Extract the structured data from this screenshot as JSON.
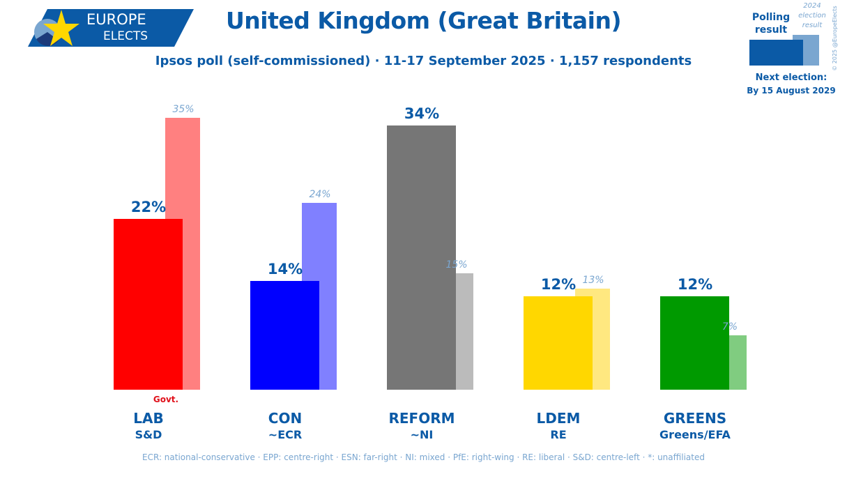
{
  "header": {
    "title": "United Kingdom (Great Britain)",
    "subtitle": "Ipsos poll (self-commissioned) · 11-17 September 2025 · 1,157 respondents"
  },
  "logo": {
    "line1": "EUROPE",
    "line2": "ELECTS"
  },
  "legend": {
    "polling": "Polling result",
    "previous_line1": "2024",
    "previous_line2": "election",
    "previous_line3": "result",
    "copyright": "© 2025 @EuropeElects",
    "next_election_label": "Next election:",
    "next_election_date": "By 15 August 2029",
    "polling_color": "#0b5aa6",
    "previous_color": "#7aa6d0"
  },
  "chart_data": {
    "type": "bar",
    "categories": [
      "LAB",
      "CON",
      "REFORM",
      "LDEM",
      "GREENS"
    ],
    "groups": [
      "S&D",
      "~ECR",
      "~NI",
      "RE",
      "Greens/EFA"
    ],
    "series": [
      {
        "name": "Polling result",
        "values": [
          22,
          14,
          34,
          12,
          12
        ],
        "labels": [
          "22%",
          "14%",
          "34%",
          "12%",
          "12%"
        ]
      },
      {
        "name": "2024 election result",
        "values": [
          35,
          24,
          15,
          13,
          7
        ],
        "labels": [
          "35%",
          "24%",
          "15%",
          "13%",
          "7%"
        ]
      }
    ],
    "colors": [
      "#ff0000",
      "#0000ff",
      "#767676",
      "#ffd700",
      "#009a00"
    ],
    "prev_colors": [
      "#ff8080",
      "#8080ff",
      "#bbbbbb",
      "#ffe880",
      "#80cc80"
    ],
    "annotation": {
      "party": "LAB",
      "text": "Govt.",
      "color": "#e0101a"
    }
  },
  "footer": "ECR: national-conservative · EPP: centre-right · ESN: far-right · NI: mixed · PfE: right-wing · RE: liberal · S&D: centre-left · *: unaffiliated"
}
